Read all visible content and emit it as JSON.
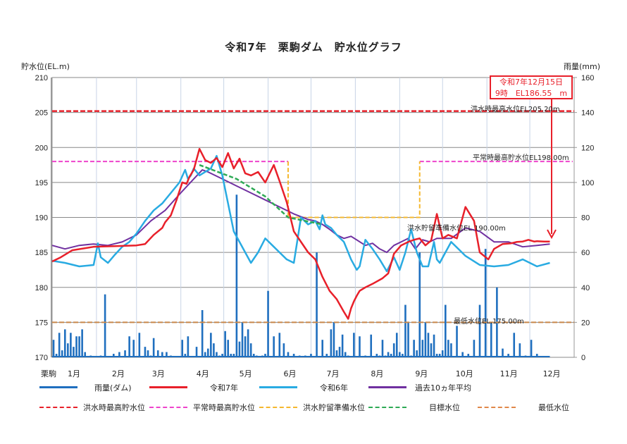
{
  "title": "令和7年　栗駒ダム　貯水位グラフ",
  "axes": {
    "left_label": "貯水位(EL.m)",
    "right_label": "雨量(mm)",
    "left_ticks": [
      "210",
      "205",
      "200",
      "195",
      "190",
      "185",
      "180",
      "175",
      "170"
    ],
    "right_ticks": [
      "160",
      "140",
      "120",
      "100",
      "80",
      "60",
      "40",
      "20",
      "0"
    ],
    "x_prefix": "栗駒",
    "months": [
      "1月",
      "2月",
      "3月",
      "4月",
      "5月",
      "6月",
      "7月",
      "8月",
      "9月",
      "10月",
      "11月",
      "12月"
    ]
  },
  "callout": {
    "line1": "令和7年12月15日",
    "line2": "9時　EL186.55　m"
  },
  "reference_labels": {
    "flood_max": "洪水時最高水位EL205.20m",
    "normal_max": "平常時最高貯水位EL198.00m",
    "flood_prep": "洪水貯留準備水位EL.190.00m",
    "minimum": "最低水位EL.175.00m"
  },
  "legend": {
    "row1": [
      {
        "label": "雨量(ダム)",
        "color": "#1f6fbf",
        "style": "solid"
      },
      {
        "label": "令和7年",
        "color": "#e8202a",
        "style": "solid"
      },
      {
        "label": "令和6年",
        "color": "#29abe2",
        "style": "solid"
      },
      {
        "label": "過去10ヵ年平均",
        "color": "#7030a0",
        "style": "solid"
      }
    ],
    "row2": [
      {
        "label": "洪水時最高貯水位",
        "color": "#e8202a",
        "style": "dashed"
      },
      {
        "label": "平常時最高貯水位",
        "color": "#ee44cc",
        "style": "dashed"
      },
      {
        "label": "洪水貯留準備水位",
        "color": "#f5b82e",
        "style": "dashed"
      },
      {
        "label": "目標水位",
        "color": "#2eaa55",
        "style": "dashed"
      },
      {
        "label": "最低水位",
        "color": "#e0884a",
        "style": "dashed"
      }
    ]
  },
  "colors": {
    "rain": "#1f6fbf",
    "r7": "#e8202a",
    "r6": "#29abe2",
    "avg10": "#7030a0",
    "flood_max": "#e8202a",
    "normal_max": "#ee44cc",
    "flood_prep": "#f5b82e",
    "target": "#2eaa55",
    "minimum": "#c8874a",
    "grid": "#888888",
    "vgrid": "#c8d4e6"
  },
  "chart_data": {
    "type": "line",
    "title": "令和7年　栗駒ダム　貯水位グラフ",
    "xlabel": "",
    "ylabel": "貯水位(EL.m)",
    "y2label": "雨量(mm)",
    "ylim": [
      170,
      210
    ],
    "y2lim": [
      0,
      160
    ],
    "grid": true,
    "legend_position": "bottom",
    "categories": [
      "1月",
      "2月",
      "3月",
      "4月",
      "5月",
      "6月",
      "7月",
      "8月",
      "9月",
      "10月",
      "11月",
      "12月"
    ],
    "series": [
      {
        "name": "令和7年",
        "axis": "left",
        "type": "line",
        "x": [
          1,
          7,
          15,
          30,
          45,
          60,
          66,
          72,
          78,
          80,
          84,
          88,
          92,
          95,
          97,
          100,
          104,
          108,
          112,
          116,
          120,
          124,
          128,
          132,
          136,
          140,
          145,
          150,
          156,
          160,
          165,
          170,
          175,
          180,
          185,
          190,
          195,
          200,
          205,
          208,
          210,
          212,
          214,
          216,
          220,
          225,
          232,
          236,
          240,
          245,
          250,
          254,
          258,
          262,
          266,
          270,
          274,
          278,
          284,
          290,
          296,
          300,
          306,
          310,
          316,
          322,
          326,
          330,
          334,
          338,
          340,
          345,
          349
        ],
        "values": [
          183.7,
          184.3,
          185.3,
          185.8,
          185.9,
          186.0,
          186.2,
          187.5,
          188.5,
          189.3,
          190.3,
          192.5,
          195.0,
          194.8,
          195.8,
          196.8,
          199.8,
          198.2,
          197.8,
          198.5,
          197.2,
          199.2,
          197.0,
          198.4,
          196.3,
          196.0,
          196.5,
          195.0,
          197.5,
          195.2,
          192.2,
          188.0,
          186.5,
          185.0,
          184.0,
          181.5,
          179.5,
          178.3,
          176.5,
          175.5,
          177.0,
          178.0,
          178.8,
          179.5,
          180.0,
          180.5,
          181.3,
          182.0,
          184.8,
          186.0,
          186.5,
          186.8,
          187.0,
          186.0,
          186.7,
          190.5,
          187.0,
          187.5,
          187.0,
          191.5,
          189.5,
          185.0,
          184.0,
          185.5,
          186.2,
          186.3,
          186.5,
          186.55,
          186.8,
          186.55,
          186.6,
          186.55,
          186.55
        ]
      },
      {
        "name": "令和6年",
        "axis": "left",
        "type": "line",
        "x": [
          1,
          10,
          20,
          30,
          33,
          35,
          40,
          45,
          50,
          55,
          60,
          66,
          72,
          78,
          84,
          90,
          94,
          96,
          98,
          100,
          104,
          108,
          112,
          116,
          120,
          124,
          128,
          132,
          136,
          140,
          145,
          150,
          155,
          160,
          165,
          170,
          175,
          180,
          185,
          188,
          190,
          192,
          196,
          200,
          205,
          210,
          214,
          216,
          220,
          225,
          230,
          235,
          238,
          240,
          244,
          248,
          252,
          256,
          260,
          264,
          268,
          270,
          272,
          276,
          280,
          285,
          290,
          300,
          310,
          320,
          330,
          340,
          349
        ],
        "values": [
          183.8,
          183.5,
          183.0,
          183.2,
          186.3,
          184.3,
          183.5,
          184.7,
          185.8,
          186.5,
          187.7,
          189.5,
          191.0,
          192.0,
          193.5,
          195.0,
          196.8,
          195.5,
          196.0,
          197.0,
          196.0,
          196.5,
          197.0,
          198.8,
          196.0,
          192.0,
          188.0,
          186.5,
          185.0,
          183.5,
          185.0,
          187.0,
          186.0,
          185.0,
          184.0,
          183.5,
          190.0,
          189.0,
          189.5,
          188.3,
          190.3,
          189.0,
          188.5,
          187.5,
          186.5,
          184.0,
          182.5,
          183.0,
          186.8,
          185.5,
          184.0,
          182.3,
          183.5,
          184.3,
          182.5,
          185.0,
          188.3,
          185.0,
          183.0,
          183.0,
          186.5,
          184.0,
          183.5,
          185.0,
          186.5,
          185.5,
          184.5,
          183.2,
          183.0,
          183.2,
          184.0,
          183.0,
          183.5
        ]
      },
      {
        "name": "過去10ヵ年平均",
        "axis": "left",
        "type": "line",
        "x": [
          1,
          10,
          20,
          30,
          40,
          50,
          60,
          70,
          80,
          90,
          100,
          106,
          110,
          120,
          130,
          140,
          150,
          160,
          170,
          180,
          185,
          190,
          195,
          200,
          205,
          210,
          220,
          225,
          230,
          235,
          240,
          245,
          250,
          255,
          260,
          265,
          270,
          280,
          290,
          300,
          310,
          320,
          330,
          340,
          349
        ],
        "values": [
          186.0,
          185.5,
          186.0,
          186.2,
          186.0,
          186.5,
          187.5,
          189.5,
          191.0,
          193.3,
          195.5,
          196.8,
          196.5,
          195.5,
          194.5,
          193.5,
          192.5,
          191.5,
          190.5,
          189.7,
          189.5,
          189.0,
          188.3,
          187.5,
          187.0,
          187.3,
          186.0,
          186.3,
          185.5,
          185.0,
          186.0,
          186.5,
          187.0,
          185.5,
          186.8,
          186.5,
          187.0,
          187.0,
          188.5,
          188.0,
          186.5,
          186.5,
          185.8,
          186.0,
          186.2
        ]
      },
      {
        "name": "洪水時最高貯水位",
        "axis": "left",
        "type": "hline",
        "values": [
          205.2
        ]
      },
      {
        "name": "平常時最高貯水位",
        "axis": "left",
        "type": "step",
        "x": [
          1,
          166,
          166,
          258,
          258,
          365
        ],
        "values": [
          198.0,
          198.0,
          190.0,
          190.0,
          198.0,
          198.0
        ]
      },
      {
        "name": "洪水貯留準備水位",
        "axis": "left",
        "type": "step",
        "x": [
          166,
          258
        ],
        "values": [
          190.0,
          190.0
        ]
      },
      {
        "name": "目標水位",
        "axis": "left",
        "type": "line",
        "x": [
          104,
          130,
          150,
          166,
          190
        ],
        "values": [
          197.5,
          195.5,
          193.0,
          190.0,
          189.0
        ]
      },
      {
        "name": "最低水位",
        "axis": "left",
        "type": "hline",
        "values": [
          175.0
        ]
      },
      {
        "name": "雨量(ダム)",
        "axis": "right",
        "type": "bar",
        "x": [
          2,
          4,
          6,
          8,
          10,
          12,
          14,
          16,
          18,
          20,
          22,
          24,
          28,
          35,
          38,
          44,
          48,
          52,
          55,
          58,
          62,
          66,
          68,
          70,
          72,
          75,
          78,
          81,
          84,
          92,
          94,
          96,
          102,
          106,
          108,
          110,
          112,
          114,
          116,
          118,
          120,
          122,
          124,
          126,
          128,
          130,
          132,
          134,
          136,
          138,
          140,
          142,
          144,
          148,
          150,
          152,
          156,
          160,
          163,
          166,
          170,
          174,
          178,
          182,
          186,
          190,
          193,
          196,
          198,
          200,
          202,
          204,
          206,
          208,
          212,
          216,
          220,
          224,
          228,
          230,
          232,
          234,
          236,
          238,
          240,
          242,
          244,
          246,
          248,
          250,
          252,
          254,
          256,
          258,
          260,
          262,
          264,
          266,
          268,
          270,
          272,
          274,
          276,
          278,
          280,
          284,
          288,
          292,
          296,
          300,
          304,
          308,
          312,
          316,
          320,
          324,
          328,
          332,
          336,
          340
        ],
        "values": [
          10,
          2,
          14,
          4,
          16,
          8,
          14,
          6,
          12,
          12,
          16,
          3,
          1,
          1,
          36,
          2,
          3,
          4,
          12,
          10,
          14,
          6,
          4,
          1,
          11,
          4,
          3,
          3,
          1,
          10,
          2,
          12,
          6,
          27,
          3,
          5,
          14,
          8,
          3,
          1,
          2,
          15,
          10,
          2,
          2,
          93,
          9,
          20,
          12,
          16,
          8,
          2,
          1,
          1,
          2,
          38,
          12,
          14,
          8,
          3,
          2,
          1,
          1,
          2,
          60,
          10,
          2,
          16,
          20,
          4,
          6,
          13,
          3,
          1,
          14,
          12,
          1,
          13,
          2,
          1,
          10,
          1,
          3,
          2,
          8,
          14,
          3,
          2,
          30,
          20,
          1,
          10,
          4,
          60,
          10,
          20,
          14,
          8,
          13,
          2,
          2,
          4,
          30,
          10,
          8,
          18,
          3,
          2,
          10,
          30,
          62,
          20,
          40,
          5,
          2,
          14,
          8,
          1,
          10,
          2
        ]
      }
    ]
  }
}
